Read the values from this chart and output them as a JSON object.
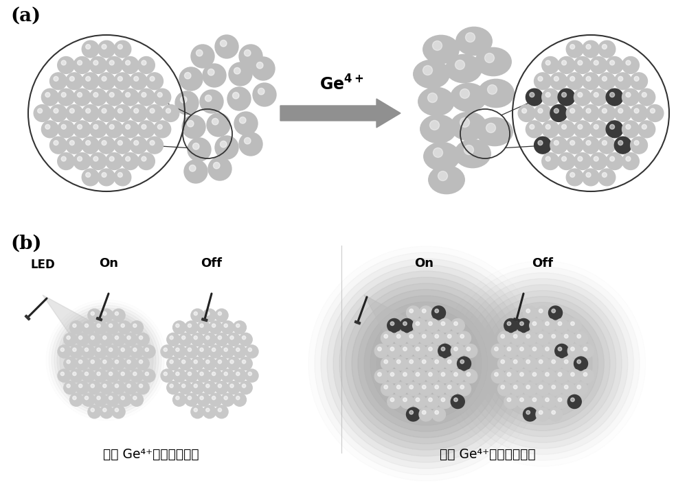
{
  "bg_color": "#ffffff",
  "label_a": "(a)",
  "label_b": "(b)",
  "bottom_left_label": "捤杂 Ge⁴⁺前的余辉性质",
  "bottom_right_label": "捤杂 Ge⁴⁺后的余辉性质",
  "led_label": "LED",
  "on_label": "On",
  "off_label": "Off",
  "fig_width": 10.0,
  "fig_height": 7.07,
  "light_sphere_color": "#c8c8c8",
  "dark_sphere_color": "#404040",
  "cluster_outline_color": "#333333",
  "arrow_color": "#888888",
  "glow_color_left": "#c8c8c8",
  "glow_color_right": "#b8b8b8",
  "beam_color": "#c0c0c0"
}
